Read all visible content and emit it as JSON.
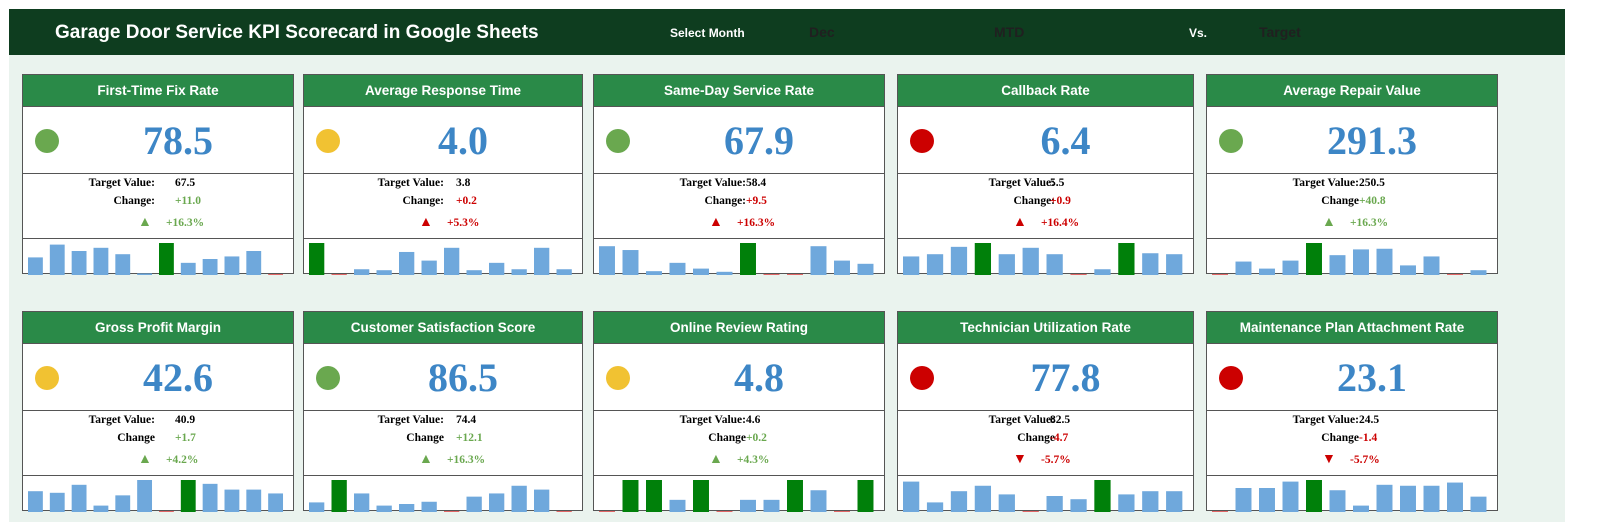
{
  "header": {
    "title": "Garage Door Service KPI Scorecard in Google Sheets",
    "select_month_label": "Select Month",
    "month_value": "Dec",
    "period_value": "MTD",
    "vs_label": "Vs.",
    "compare_value": "Target"
  },
  "colors": {
    "green": "#6aa84f",
    "amber": "#f1c232",
    "red": "#cc0000",
    "bar_blue": "#6fa8dc",
    "bar_highlight": "#00800a"
  },
  "cards": [
    {
      "title": "First-Time Fix Rate",
      "value": "78.5",
      "status": "green",
      "target_label": "Target Value:",
      "target": "67.5",
      "change_label": "Change:",
      "change": "+11.0",
      "direction": "up",
      "pct": "+16.3%",
      "bars": [
        0.55,
        0.95,
        0.75,
        0.85,
        0.65,
        0.05,
        1.0,
        0.38,
        0.5,
        0.58,
        0.75,
        0.03
      ],
      "highlight": 6
    },
    {
      "title": "Average Response Time",
      "value": "4.0",
      "status": "amber",
      "target_label": "Target Value:",
      "target": "3.8",
      "change_label": "Change:",
      "change": "+0.2",
      "direction": "up",
      "pct": "+5.3%",
      "bars": [
        1.0,
        0.03,
        0.18,
        0.15,
        0.72,
        0.45,
        0.85,
        0.15,
        0.38,
        0.18,
        0.85,
        0.18
      ],
      "highlight": 0
    },
    {
      "title": "Same-Day Service Rate",
      "value": "67.9",
      "status": "green",
      "target_label": "Target Value:",
      "target": "58.4",
      "change_label": "Change:",
      "change": "+9.5",
      "direction": "up",
      "pct": "+16.3%",
      "bars": [
        0.9,
        0.78,
        0.12,
        0.38,
        0.2,
        0.1,
        1.0,
        0.03,
        0.03,
        0.9,
        0.45,
        0.35
      ],
      "highlight": 6
    },
    {
      "title": "Callback Rate",
      "value": "6.4",
      "status": "red",
      "target_label": "Target Value:",
      "target": "5.5",
      "change_label": "Change:",
      "change": "+0.9",
      "direction": "up",
      "pct": "+16.4%",
      "bars": [
        0.58,
        0.65,
        0.88,
        1.0,
        0.65,
        0.85,
        0.65,
        0.03,
        0.18,
        1.0,
        0.68,
        0.65
      ],
      "highlight": [
        3,
        9
      ]
    },
    {
      "title": "Average Repair Value",
      "value": "291.3",
      "status": "green",
      "target_label": "Target Value:",
      "target": "250.5",
      "change_label": "Change",
      "change": "+40.8",
      "direction": "up",
      "pct": "+16.3%",
      "bars": [
        0.03,
        0.42,
        0.2,
        0.45,
        1.0,
        0.62,
        0.8,
        0.82,
        0.3,
        0.58,
        0.03,
        0.15
      ],
      "highlight": 4
    },
    {
      "title": "Gross Profit Margin",
      "value": "42.6",
      "status": "amber",
      "target_label": "Target Value:",
      "target": "40.9",
      "change_label": "Change",
      "change": "+1.7",
      "direction": "up",
      "pct": "+4.2%",
      "bars": [
        0.65,
        0.6,
        0.85,
        0.2,
        0.52,
        1.0,
        0.03,
        1.0,
        0.88,
        0.7,
        0.7,
        0.58
      ],
      "highlight": 7
    },
    {
      "title": "Customer Satisfaction Score",
      "value": "86.5",
      "status": "green",
      "target_label": "Target Value:",
      "target": "74.4",
      "change_label": "Change",
      "change": "+12.1",
      "direction": "up",
      "pct": "+16.3%",
      "bars": [
        0.3,
        1.0,
        0.58,
        0.2,
        0.25,
        0.32,
        0.03,
        0.48,
        0.58,
        0.82,
        0.7,
        0.03
      ],
      "highlight": 1
    },
    {
      "title": "Online Review Rating",
      "value": "4.8",
      "status": "amber",
      "target_label": "Target Value:",
      "target": "4.6",
      "change_label": "Change",
      "change": "+0.2",
      "direction": "up",
      "pct": "+4.3%",
      "bars": [
        0.03,
        1.0,
        1.0,
        0.38,
        1.0,
        0.03,
        0.38,
        0.38,
        1.0,
        0.68,
        0.03,
        1.0
      ],
      "highlight": [
        1,
        2,
        4,
        8,
        11
      ]
    },
    {
      "title": "Technician Utilization Rate",
      "value": "77.8",
      "status": "red",
      "target_label": "Target Value:",
      "target": "82.5",
      "change_label": "Change",
      "change": "-4.7",
      "direction": "down",
      "pct": "-5.7%",
      "bars": [
        0.95,
        0.3,
        0.65,
        0.82,
        0.55,
        0.03,
        0.5,
        0.4,
        1.0,
        0.55,
        0.65,
        0.65
      ],
      "highlight": 8
    },
    {
      "title": "Maintenance Plan Attachment Rate",
      "value": "23.1",
      "status": "red",
      "target_label": "Target Value:",
      "target": "24.5",
      "change_label": "Change",
      "change": "-1.4",
      "direction": "down",
      "pct": "-5.7%",
      "bars": [
        0.03,
        0.75,
        0.75,
        0.95,
        1.0,
        0.68,
        0.2,
        0.85,
        0.82,
        0.82,
        0.92,
        0.48
      ],
      "highlight": 4
    }
  ]
}
